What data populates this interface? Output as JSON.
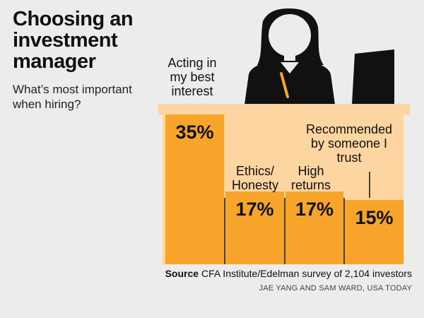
{
  "header": {
    "title": "Choosing an investment manager",
    "subtitle": "What’s most important when hiring?"
  },
  "footer": {
    "source_label": "Source",
    "source_text": "CFA Institute/Edelman survey of 2,104 investors",
    "credit": "JAE YANG AND SAM WARD, USA TODAY"
  },
  "colors": {
    "bar": "#f6a52a",
    "desk": "#fcd5a0",
    "figure": "#111111",
    "background": "#ececec"
  },
  "chart_data": {
    "type": "bar",
    "title": "Choosing an investment manager",
    "subtitle": "What’s most important when hiring?",
    "categories": [
      "Acting in my best interest",
      "Ethics/ Honesty",
      "High returns",
      "Recommended by someone I trust"
    ],
    "category_lines": [
      [
        "Acting in",
        "my best",
        "interest"
      ],
      [
        "Ethics/",
        "Honesty"
      ],
      [
        "High",
        "returns"
      ],
      [
        "Recommended",
        "by someone I",
        "trust"
      ]
    ],
    "values": [
      35,
      17,
      17,
      15
    ],
    "value_labels": [
      "35%",
      "17%",
      "17%",
      "15%"
    ],
    "ylim": [
      0,
      35
    ]
  }
}
